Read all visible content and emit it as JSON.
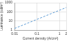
{
  "chart_data": {
    "type": "line",
    "x_label": "Current density (A/cm²)",
    "y_label": "Luminance (cd/m²)",
    "x": [
      0.01,
      0.1,
      1,
      2
    ],
    "values": [
      1.5,
      15,
      150,
      300
    ],
    "color": "#5b9bd5",
    "log": true,
    "xlim": [
      0.01,
      2
    ],
    "xticks": [
      0.01,
      0.1,
      1,
      2
    ],
    "ylim": [
      1,
      1000
    ],
    "yticks": [
      1,
      10,
      100,
      1000
    ],
    "grid": true,
    "line_style": "dashed"
  }
}
